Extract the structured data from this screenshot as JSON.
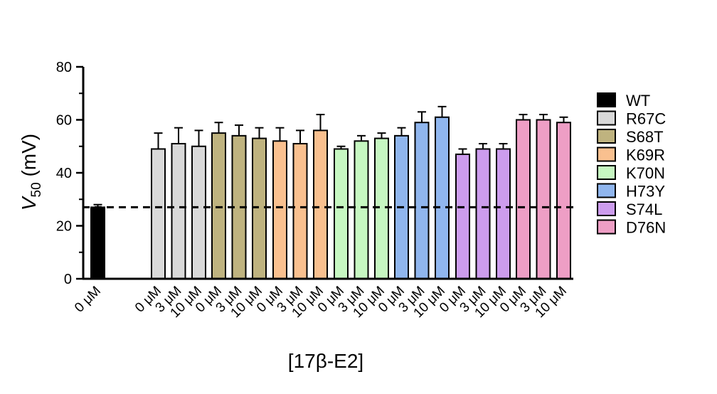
{
  "chart_data": {
    "type": "bar",
    "title": "",
    "xlabel": "[17β-E2]",
    "ylabel_main": "V",
    "ylabel_sub": "50",
    "ylabel_unit": " (mV)",
    "ylim": [
      0,
      80
    ],
    "yticks": [
      0,
      20,
      40,
      60,
      80
    ],
    "reference_line": 27,
    "legend_position": "right",
    "groups": [
      {
        "name": "WT",
        "color": "#000000",
        "bars": [
          {
            "label": "0 μM",
            "value": 27,
            "error": 1
          }
        ]
      },
      {
        "name": "R67C",
        "color": "#d9d9d9",
        "bars": [
          {
            "label": "0 μM",
            "value": 49,
            "error": 6
          },
          {
            "label": "3 μM",
            "value": 51,
            "error": 6
          },
          {
            "label": "10 μM",
            "value": 50,
            "error": 6
          }
        ]
      },
      {
        "name": "S68T",
        "color": "#bfb37f",
        "bars": [
          {
            "label": "0 μM",
            "value": 55,
            "error": 4
          },
          {
            "label": "3 μM",
            "value": 54,
            "error": 4
          },
          {
            "label": "10 μM",
            "value": 53,
            "error": 4
          }
        ]
      },
      {
        "name": "K69R",
        "color": "#f9c08f",
        "bars": [
          {
            "label": "0 μM",
            "value": 52,
            "error": 5
          },
          {
            "label": "3 μM",
            "value": 51,
            "error": 5
          },
          {
            "label": "10 μM",
            "value": 56,
            "error": 6
          }
        ]
      },
      {
        "name": "K70N",
        "color": "#c6f7c1",
        "bars": [
          {
            "label": "0 μM",
            "value": 49,
            "error": 1
          },
          {
            "label": "3 μM",
            "value": 52,
            "error": 2
          },
          {
            "label": "10 μM",
            "value": 53,
            "error": 2
          }
        ]
      },
      {
        "name": "H73Y",
        "color": "#90b6ee",
        "bars": [
          {
            "label": "0 μM",
            "value": 54,
            "error": 3
          },
          {
            "label": "3 μM",
            "value": 59,
            "error": 4
          },
          {
            "label": "10 μM",
            "value": 61,
            "error": 4
          }
        ]
      },
      {
        "name": "S74L",
        "color": "#cc9ced",
        "bars": [
          {
            "label": "0 μM",
            "value": 47,
            "error": 2
          },
          {
            "label": "3 μM",
            "value": 49,
            "error": 2
          },
          {
            "label": "10 μM",
            "value": 49,
            "error": 2
          }
        ]
      },
      {
        "name": "D76N",
        "color": "#ee9ec5",
        "bars": [
          {
            "label": "0 μM",
            "value": 60,
            "error": 2
          },
          {
            "label": "3 μM",
            "value": 60,
            "error": 2
          },
          {
            "label": "10 μM",
            "value": 59,
            "error": 2
          }
        ]
      }
    ]
  }
}
